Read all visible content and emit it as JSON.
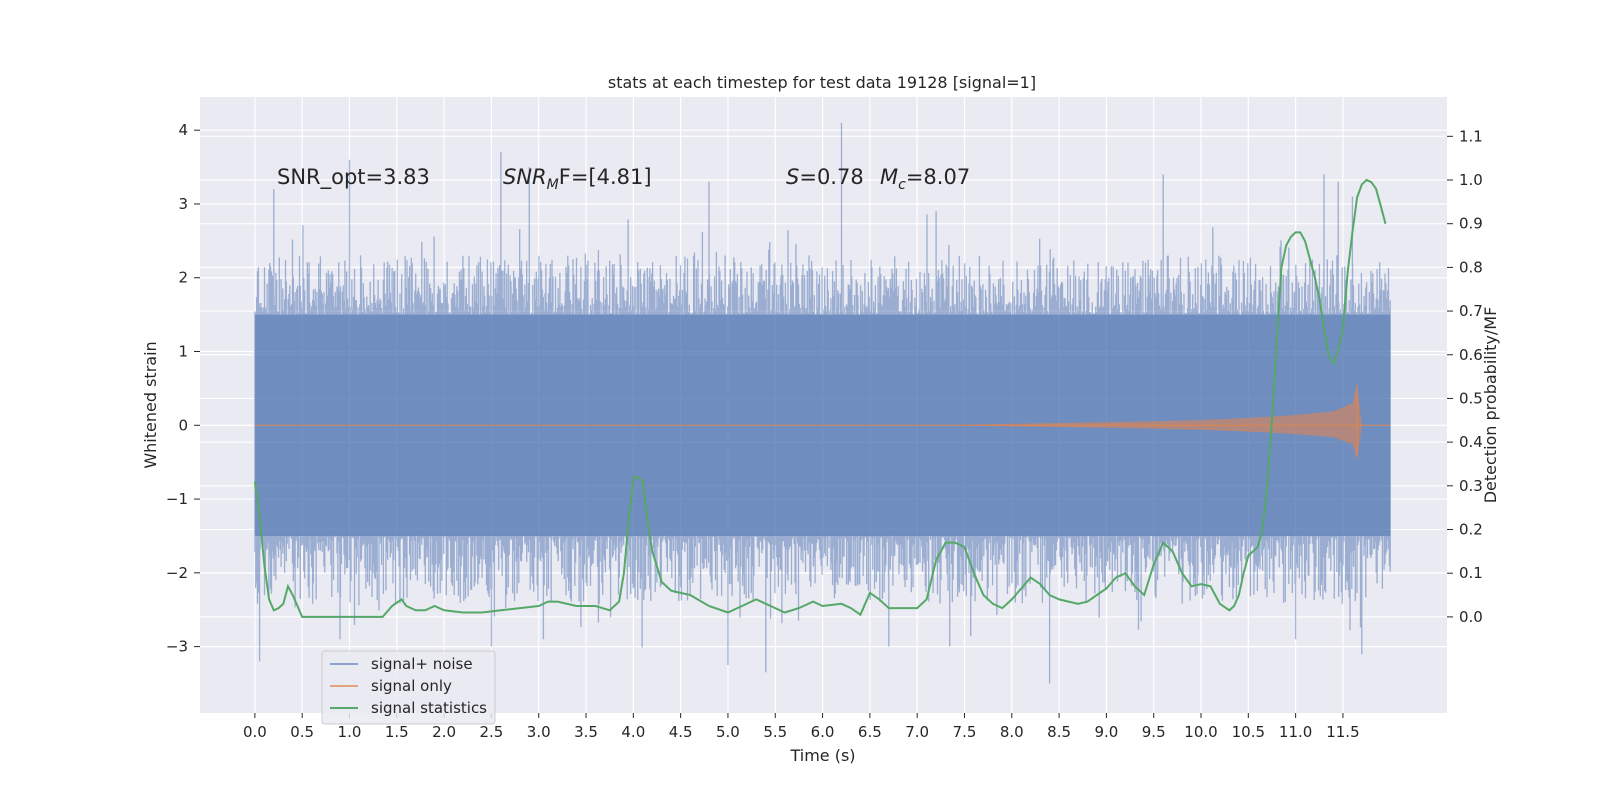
{
  "chart_data": {
    "type": "line",
    "title": "stats at each timestep for test data 19128 [signal=1]",
    "xlabel": "Time (s)",
    "ylabel_left": "Whitened strain",
    "ylabel_right": "Detection probability/MF",
    "xlim": [
      -0.58,
      12.6
    ],
    "ylim_left": [
      -3.9,
      4.45
    ],
    "ylim_right": [
      -0.22,
      1.19
    ],
    "x_ticks": [
      0.0,
      0.5,
      1.0,
      1.5,
      2.0,
      2.5,
      3.0,
      3.5,
      4.0,
      4.5,
      5.0,
      5.5,
      6.0,
      6.5,
      7.0,
      7.5,
      8.0,
      8.5,
      9.0,
      9.5,
      10.0,
      10.5,
      11.0,
      11.5
    ],
    "x_tick_labels": [
      "0.0",
      "0.5",
      "1.0",
      "1.5",
      "2.0",
      "2.5",
      "3.0",
      "3.5",
      "4.0",
      "4.5",
      "5.0",
      "5.5",
      "6.0",
      "6.5",
      "7.0",
      "7.5",
      "8.0",
      "8.5",
      "9.0",
      "9.5",
      "10.0",
      "10.5",
      "11.0",
      "11.5"
    ],
    "y_ticks_left": [
      4,
      3,
      2,
      1,
      0,
      -1,
      -2,
      -3
    ],
    "y_tick_labels_left": [
      "4",
      "3",
      "2",
      "1",
      "0",
      "−1",
      "−2",
      "−3"
    ],
    "y_ticks_right": [
      1.1,
      1.0,
      0.9,
      0.8,
      0.7,
      0.6,
      0.5,
      0.4,
      0.3,
      0.2,
      0.1,
      0.0
    ],
    "y_tick_labels_right": [
      "1.1",
      "1.0",
      "0.9",
      "0.8",
      "0.7",
      "0.6",
      "0.5",
      "0.4",
      "0.3",
      "0.2",
      "0.1",
      "0.0"
    ],
    "annotations": {
      "snr_opt": "SNR_opt=3.83",
      "snr_mf_main": "SNR",
      "snr_mf_sub": "M",
      "snr_mf_rest": "F=[4.81]",
      "s_label": "S",
      "s_value": "=0.78",
      "mc_label": "M",
      "mc_sub": "c",
      "mc_value": "=8.07"
    },
    "legend": {
      "position": "lower-left",
      "entries": [
        {
          "label": "signal+ noise",
          "color": "#4c72b0"
        },
        {
          "label": "signal only",
          "color": "#dd8452"
        },
        {
          "label": "signal statistics",
          "color": "#55a868"
        }
      ]
    },
    "series": [
      {
        "name": "signal+ noise",
        "kind": "noise",
        "x_range": [
          0.0,
          12.0
        ],
        "core_band": [
          -1.5,
          1.5
        ],
        "typical_envelope": [
          -2.3,
          2.2
        ],
        "peaks_max": [
          [
            0.2,
            3.2
          ],
          [
            1.0,
            3.6
          ],
          [
            2.6,
            3.7
          ],
          [
            2.9,
            3.5
          ],
          [
            4.8,
            3.3
          ],
          [
            6.2,
            4.1
          ],
          [
            7.2,
            2.9
          ],
          [
            9.6,
            3.4
          ],
          [
            11.3,
            3.4
          ],
          [
            11.45,
            3.3
          ],
          [
            11.6,
            3.1
          ]
        ],
        "peaks_min": [
          [
            0.05,
            -3.2
          ],
          [
            0.9,
            -2.9
          ],
          [
            2.5,
            -3.0
          ],
          [
            3.05,
            -2.9
          ],
          [
            5.0,
            -3.25
          ],
          [
            5.4,
            -3.35
          ],
          [
            6.7,
            -3.0
          ],
          [
            8.4,
            -3.5
          ],
          [
            11.0,
            -2.9
          ],
          [
            11.7,
            -3.1
          ]
        ],
        "color": "#4c72b0",
        "alpha": 0.5
      },
      {
        "name": "signal only",
        "kind": "chirp",
        "x_range": [
          0.0,
          12.0
        ],
        "chirp_start": 7.5,
        "merger_time": 11.65,
        "peak_amplitude": [
          0.55,
          -0.42
        ],
        "envelope": [
          [
            7.5,
            0.005
          ],
          [
            8.0,
            0.02
          ],
          [
            9.0,
            0.04
          ],
          [
            10.0,
            0.07
          ],
          [
            10.5,
            0.1
          ],
          [
            11.0,
            0.14
          ],
          [
            11.4,
            0.19
          ],
          [
            11.6,
            0.3
          ],
          [
            11.65,
            0.55
          ],
          [
            11.7,
            0.0
          ]
        ],
        "color": "#dd8452"
      },
      {
        "name": "signal statistics",
        "kind": "line",
        "axis": "right",
        "color": "#55a868",
        "x": [
          0.0,
          0.05,
          0.1,
          0.15,
          0.2,
          0.25,
          0.3,
          0.35,
          0.4,
          0.5,
          0.6,
          0.8,
          1.0,
          1.2,
          1.35,
          1.45,
          1.55,
          1.6,
          1.7,
          1.8,
          1.9,
          2.0,
          2.2,
          2.4,
          2.6,
          2.8,
          3.0,
          3.1,
          3.2,
          3.4,
          3.6,
          3.75,
          3.85,
          3.9,
          3.95,
          4.0,
          4.05,
          4.1,
          4.15,
          4.2,
          4.3,
          4.4,
          4.5,
          4.6,
          4.8,
          5.0,
          5.1,
          5.3,
          5.5,
          5.6,
          5.75,
          5.9,
          6.0,
          6.2,
          6.3,
          6.4,
          6.5,
          6.6,
          6.7,
          6.8,
          7.0,
          7.1,
          7.2,
          7.3,
          7.4,
          7.5,
          7.6,
          7.7,
          7.8,
          7.9,
          8.0,
          8.1,
          8.2,
          8.3,
          8.4,
          8.5,
          8.6,
          8.7,
          8.8,
          8.9,
          9.0,
          9.1,
          9.2,
          9.3,
          9.4,
          9.5,
          9.6,
          9.7,
          9.8,
          9.9,
          10.0,
          10.1,
          10.2,
          10.3,
          10.35,
          10.4,
          10.45,
          10.5,
          10.55,
          10.6,
          10.65,
          10.7,
          10.75,
          10.8,
          10.85,
          10.9,
          10.95,
          11.0,
          11.05,
          11.1,
          11.15,
          11.2,
          11.25,
          11.3,
          11.35,
          11.4,
          11.45,
          11.5,
          11.55,
          11.6,
          11.65,
          11.7,
          11.75,
          11.8,
          11.85,
          11.9,
          11.95
        ],
        "y": [
          0.31,
          0.23,
          0.12,
          0.04,
          0.015,
          0.02,
          0.03,
          0.07,
          0.05,
          0.0,
          0.0,
          0.0,
          0.0,
          0.0,
          0.0,
          0.025,
          0.04,
          0.025,
          0.015,
          0.015,
          0.025,
          0.015,
          0.01,
          0.01,
          0.015,
          0.02,
          0.025,
          0.035,
          0.035,
          0.025,
          0.025,
          0.015,
          0.035,
          0.1,
          0.22,
          0.32,
          0.32,
          0.31,
          0.22,
          0.15,
          0.08,
          0.06,
          0.055,
          0.05,
          0.025,
          0.01,
          0.02,
          0.04,
          0.02,
          0.01,
          0.02,
          0.035,
          0.025,
          0.03,
          0.02,
          0.005,
          0.055,
          0.04,
          0.02,
          0.02,
          0.02,
          0.04,
          0.13,
          0.17,
          0.17,
          0.16,
          0.1,
          0.05,
          0.03,
          0.02,
          0.04,
          0.065,
          0.09,
          0.075,
          0.05,
          0.04,
          0.035,
          0.03,
          0.035,
          0.05,
          0.065,
          0.09,
          0.1,
          0.07,
          0.05,
          0.12,
          0.17,
          0.15,
          0.1,
          0.07,
          0.075,
          0.07,
          0.03,
          0.015,
          0.025,
          0.05,
          0.1,
          0.14,
          0.15,
          0.16,
          0.2,
          0.3,
          0.45,
          0.63,
          0.8,
          0.85,
          0.87,
          0.88,
          0.88,
          0.86,
          0.82,
          0.78,
          0.73,
          0.66,
          0.6,
          0.58,
          0.61,
          0.66,
          0.79,
          0.88,
          0.96,
          0.99,
          1.0,
          0.995,
          0.98,
          0.94,
          0.9
        ]
      }
    ]
  }
}
